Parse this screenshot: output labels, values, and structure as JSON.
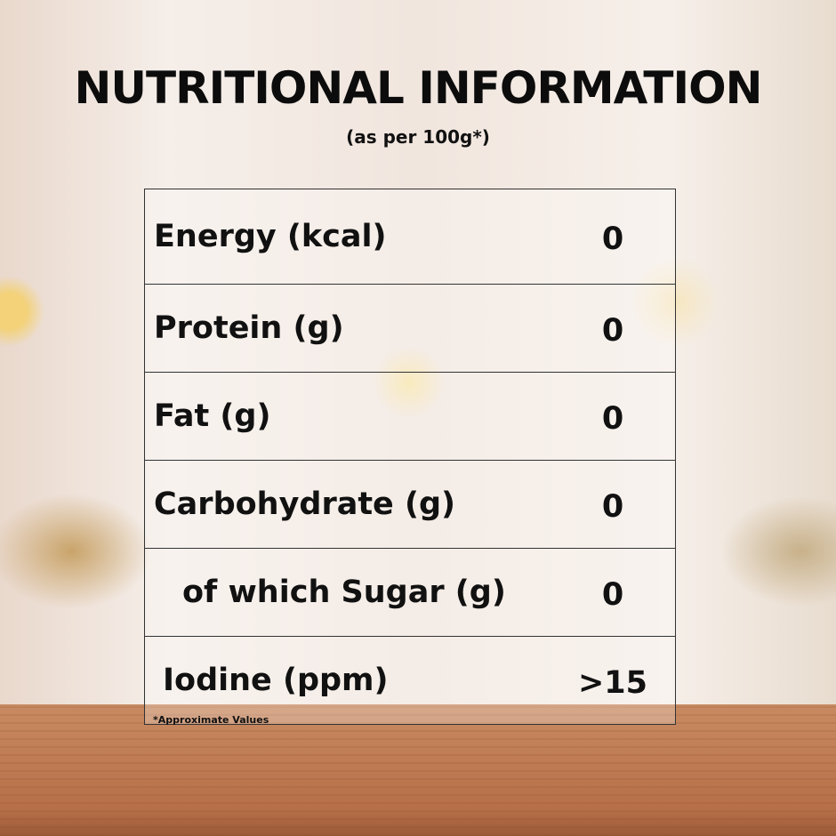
{
  "title": "NUTRITIONAL INFORMATION",
  "subtitle": "(as per 100g*)",
  "rows": [
    {
      "label": "Energy (kcal)",
      "value": "0"
    },
    {
      "label": "Protein (g)",
      "value": "0"
    },
    {
      "label": "Fat (g)",
      "value": "0"
    },
    {
      "label": "Carbohydrate (g)",
      "value": "0"
    },
    {
      "label": "of which Sugar (g)",
      "value": "0",
      "indent": true
    },
    {
      "label": "Iodine (ppm)",
      "value": ">15"
    }
  ],
  "footnote": "*Approximate Values"
}
